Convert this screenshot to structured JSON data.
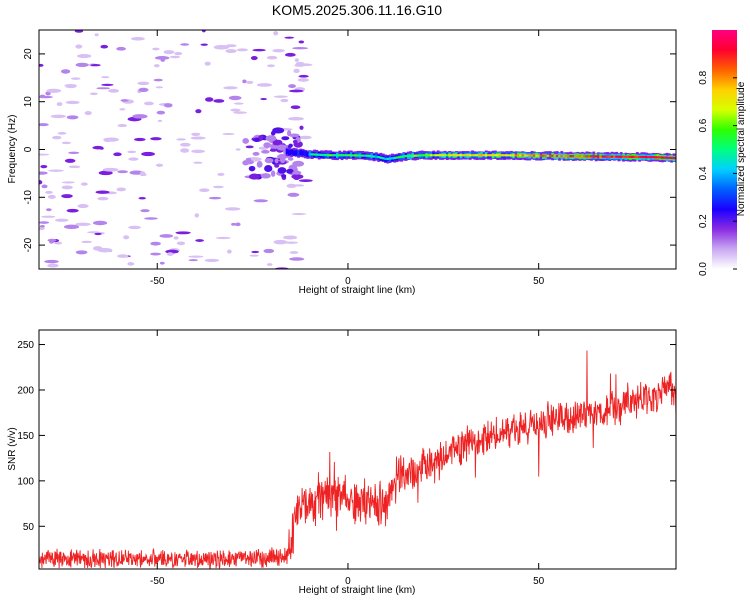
{
  "figure_title": "KOM5.2025.306.11.16.G10",
  "colors": {
    "snr_line": "#ee2222",
    "track_core": "#ee3355",
    "noise_light": "#d8bff4",
    "noise_mid": "#b483ec",
    "noise_dark": "#7a1ee0"
  },
  "chart_data": [
    {
      "type": "heatmap",
      "title": "KOM5.2025.306.11.16.G10",
      "xlabel": "Height of straight line (km)",
      "ylabel": "Frequency (Hz)",
      "xlim": [
        -81,
        86
      ],
      "ylim": [
        -25,
        25
      ],
      "xticks": [
        -50,
        0,
        50
      ],
      "yticks": [
        -20,
        -10,
        0,
        10,
        20
      ],
      "description_of_signal": "Scattered weak noise below -15 km; coherent Doppler track near -1.5 Hz from about -16 km to 86 km",
      "track": {
        "x": [
          -16,
          -10,
          -5,
          0,
          5,
          8,
          10,
          12,
          15,
          20,
          30,
          40,
          50,
          60,
          70,
          80,
          86
        ],
        "freq": [
          -0.5,
          -1.0,
          -1.2,
          -1.2,
          -1.3,
          -1.6,
          -2.0,
          -1.8,
          -1.4,
          -1.2,
          -1.2,
          -1.2,
          -1.3,
          -1.4,
          -1.5,
          -1.6,
          -1.8
        ],
        "amplitude": [
          0.3,
          0.45,
          0.55,
          0.55,
          0.5,
          0.45,
          0.4,
          0.5,
          0.55,
          0.6,
          0.7,
          0.75,
          0.8,
          0.85,
          0.9,
          0.95,
          0.97
        ]
      }
    },
    {
      "type": "colorbar",
      "label": "Normalized spectral amplitude",
      "range": [
        0,
        1
      ],
      "ticks": [
        "0.0",
        "0.2",
        "0.4",
        "0.6",
        "0.8"
      ],
      "tick_values": [
        0.0,
        0.2,
        0.4,
        0.6,
        0.8
      ],
      "stops": [
        "#ffffff",
        "#c9a8f2",
        "#8a2be2",
        "#1a00ff",
        "#0060ff",
        "#00d0ff",
        "#00ff80",
        "#30ff00",
        "#d8ff00",
        "#ffd000",
        "#ff6000",
        "#ff0030",
        "#ff0080"
      ]
    },
    {
      "type": "line",
      "xlabel": "Height of straight line (km)",
      "ylabel": "SNR (v/v)",
      "xlim": [
        -81,
        86
      ],
      "ylim": [
        3,
        266
      ],
      "xticks": [
        -50,
        0,
        50
      ],
      "yticks": [
        50,
        100,
        150,
        200,
        250
      ],
      "series": [
        {
          "name": "SNR",
          "x": [
            -81,
            -70,
            -60,
            -50,
            -40,
            -30,
            -20,
            -16,
            -14,
            -12,
            -10,
            -8,
            -5,
            -2,
            0,
            3,
            5,
            8,
            10,
            12,
            15,
            20,
            25,
            30,
            35,
            40,
            45,
            50,
            55,
            60,
            65,
            70,
            75,
            80,
            83,
            84,
            86
          ],
          "y": [
            14,
            14,
            14,
            14,
            14,
            14,
            15,
            18,
            50,
            75,
            70,
            78,
            85,
            85,
            80,
            75,
            80,
            68,
            75,
            100,
            105,
            115,
            125,
            140,
            145,
            152,
            158,
            162,
            168,
            172,
            178,
            182,
            188,
            192,
            196,
            215,
            185
          ]
        }
      ]
    }
  ]
}
